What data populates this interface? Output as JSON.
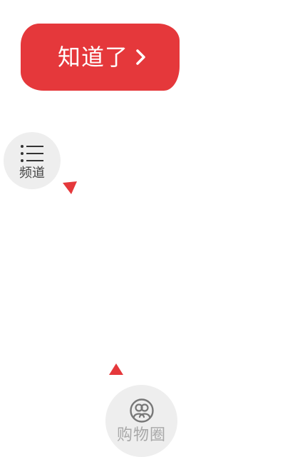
{
  "coach": {
    "got_it_label": "知道了",
    "chevron_icon": "chevron-right-icon",
    "accent_color": "#e5383b"
  },
  "channel": {
    "label": "频道",
    "icon": "list-icon"
  },
  "shopping_circle": {
    "label": "购物圈",
    "icon": "people-circle-icon"
  }
}
